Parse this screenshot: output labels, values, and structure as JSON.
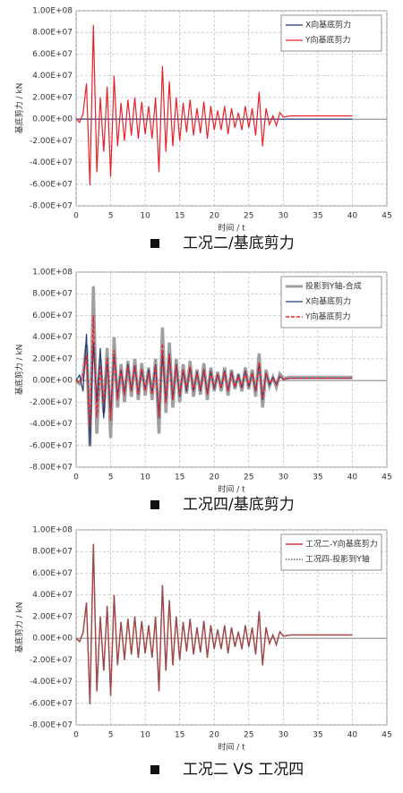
{
  "chart_data": [
    {
      "type": "line",
      "title": "工况二/基底剪力",
      "xlabel": "时间 / t",
      "ylabel": "基底剪力 / kN",
      "xlim": [
        0,
        45
      ],
      "xticks": [
        0,
        5,
        10,
        15,
        20,
        25,
        30,
        35,
        40,
        45
      ],
      "ylim": [
        -80000000.0,
        100000000.0
      ],
      "yticks": [
        {
          "value": -80000000.0,
          "label": "-8.00E+07"
        },
        {
          "value": -60000000.0,
          "label": "-6.00E+07"
        },
        {
          "value": -40000000.0,
          "label": "-4.00E+07"
        },
        {
          "value": -20000000.0,
          "label": "-2.00E+07"
        },
        {
          "value": 0,
          "label": "0.00E+00"
        },
        {
          "value": 20000000.0,
          "label": "2.00E+07"
        },
        {
          "value": 40000000.0,
          "label": "4.00E+07"
        },
        {
          "value": 60000000.0,
          "label": "6.00E+07"
        },
        {
          "value": 80000000.0,
          "label": "8.00E+07"
        },
        {
          "value": 100000000.0,
          "label": "1.00E+08"
        }
      ],
      "grid": true,
      "legend": "upper right",
      "x": [
        0,
        0.5,
        1,
        1.5,
        2,
        2.5,
        3,
        3.5,
        4,
        4.5,
        5,
        5.5,
        6,
        6.5,
        7,
        7.5,
        8,
        8.5,
        9,
        9.5,
        10,
        10.5,
        11,
        11.5,
        12,
        12.5,
        13,
        13.5,
        14,
        14.5,
        15,
        15.5,
        16,
        16.5,
        17,
        17.5,
        18,
        18.5,
        19,
        19.5,
        20,
        20.5,
        21,
        21.5,
        22,
        22.5,
        23,
        23.5,
        24,
        24.5,
        25,
        25.5,
        26,
        26.5,
        27,
        27.5,
        28,
        28.5,
        29,
        29.5,
        30,
        31,
        40
      ],
      "series": [
        {
          "name": "X向基底剪力",
          "color": "#1f3a7a",
          "style": "solid",
          "width": 1.2,
          "values": [
            0,
            0,
            0,
            0,
            0,
            0,
            0,
            0,
            0,
            0,
            0,
            0,
            0,
            0,
            0,
            0,
            0,
            0,
            0,
            0,
            0,
            0,
            0,
            0,
            0,
            0,
            0,
            0,
            0,
            0,
            0,
            0,
            0,
            0,
            0,
            0,
            0,
            0,
            0,
            0,
            0,
            0,
            0,
            0,
            0,
            0,
            0,
            0,
            0,
            0,
            0,
            0,
            0,
            0,
            0,
            0,
            0,
            0,
            0,
            0,
            0,
            0,
            0
          ]
        },
        {
          "name": "Y向基底剪力",
          "color": "#e8202a",
          "style": "solid",
          "width": 1.2,
          "values": [
            0,
            -3000000.0,
            5000000.0,
            33000000.0,
            -61000000.0,
            87000000.0,
            -49000000.0,
            20000000.0,
            -30000000.0,
            30000000.0,
            -53000000.0,
            40000000.0,
            -25000000.0,
            15000000.0,
            -20000000.0,
            18000000.0,
            -15000000.0,
            20000000.0,
            -18000000.0,
            16000000.0,
            -14000000.0,
            12000000.0,
            -18000000.0,
            20000000.0,
            -49000000.0,
            49000000.0,
            -30000000.0,
            35000000.0,
            -25000000.0,
            20000000.0,
            -20000000.0,
            15000000.0,
            -12000000.0,
            18000000.0,
            -15000000.0,
            10000000.0,
            -13000000.0,
            16000000.0,
            -18000000.0,
            12000000.0,
            -10000000.0,
            8000000.0,
            -10000000.0,
            12000000.0,
            -14000000.0,
            10000000.0,
            -8000000.0,
            6000000.0,
            -10000000.0,
            12000000.0,
            -8000000.0,
            10000000.0,
            -15000000.0,
            25000000.0,
            -25000000.0,
            10000000.0,
            -5000000.0,
            3000000.0,
            -6000000.0,
            6000000.0,
            2000000.0,
            3000000.0,
            3000000.0
          ]
        }
      ]
    },
    {
      "type": "line",
      "title": "工况四/基底剪力",
      "xlabel": "时间 / t",
      "ylabel": "基底剪力 / kN",
      "xlim": [
        0,
        45
      ],
      "xticks": [
        0,
        5,
        10,
        15,
        20,
        25,
        30,
        35,
        40,
        45
      ],
      "ylim": [
        -80000000.0,
        100000000.0
      ],
      "yticks": [
        {
          "value": -80000000.0,
          "label": "-8.00E+07"
        },
        {
          "value": -60000000.0,
          "label": "-6.00E+07"
        },
        {
          "value": -40000000.0,
          "label": "-4.00E+07"
        },
        {
          "value": -20000000.0,
          "label": "-2.00E+07"
        },
        {
          "value": 0,
          "label": "0.00E+00"
        },
        {
          "value": 20000000.0,
          "label": "2.00E+07"
        },
        {
          "value": 40000000.0,
          "label": "4.00E+07"
        },
        {
          "value": 60000000.0,
          "label": "6.00E+07"
        },
        {
          "value": 80000000.0,
          "label": "8.00E+07"
        },
        {
          "value": 100000000.0,
          "label": "1.00E+08"
        }
      ],
      "grid": true,
      "legend": "upper right",
      "x": [
        0,
        0.5,
        1,
        1.5,
        2,
        2.5,
        3,
        3.5,
        4,
        4.5,
        5,
        5.5,
        6,
        6.5,
        7,
        7.5,
        8,
        8.5,
        9,
        9.5,
        10,
        10.5,
        11,
        11.5,
        12,
        12.5,
        13,
        13.5,
        14,
        14.5,
        15,
        15.5,
        16,
        16.5,
        17,
        17.5,
        18,
        18.5,
        19,
        19.5,
        20,
        20.5,
        21,
        21.5,
        22,
        22.5,
        23,
        23.5,
        24,
        24.5,
        25,
        25.5,
        26,
        26.5,
        27,
        27.5,
        28,
        28.5,
        29,
        29.5,
        30,
        31,
        40
      ],
      "series": [
        {
          "name": "投影到Y轴-合成",
          "color": "#a0a0a0",
          "style": "solid",
          "width": 3.5,
          "values": [
            0,
            -3000000.0,
            5000000.0,
            33000000.0,
            -61000000.0,
            87000000.0,
            -49000000.0,
            20000000.0,
            -30000000.0,
            30000000.0,
            -53000000.0,
            40000000.0,
            -25000000.0,
            15000000.0,
            -20000000.0,
            18000000.0,
            -15000000.0,
            20000000.0,
            -18000000.0,
            16000000.0,
            -14000000.0,
            12000000.0,
            -18000000.0,
            20000000.0,
            -49000000.0,
            49000000.0,
            -30000000.0,
            35000000.0,
            -25000000.0,
            20000000.0,
            -20000000.0,
            15000000.0,
            -12000000.0,
            18000000.0,
            -15000000.0,
            10000000.0,
            -13000000.0,
            16000000.0,
            -18000000.0,
            12000000.0,
            -10000000.0,
            8000000.0,
            -10000000.0,
            12000000.0,
            -14000000.0,
            10000000.0,
            -8000000.0,
            6000000.0,
            -10000000.0,
            12000000.0,
            -8000000.0,
            10000000.0,
            -15000000.0,
            25000000.0,
            -25000000.0,
            10000000.0,
            -5000000.0,
            3000000.0,
            -6000000.0,
            6000000.0,
            2000000.0,
            3000000.0,
            3000000.0
          ]
        },
        {
          "name": "X向基底剪力",
          "color": "#1f3a7a",
          "style": "solid",
          "width": 1.2,
          "values": [
            0,
            5000000.0,
            -10000000.0,
            43000000.0,
            -60000000.0,
            35000000.0,
            -20000000.0,
            30000000.0,
            -35000000.0,
            20000000.0,
            -30000000.0,
            25000000.0,
            -15000000.0,
            10000000.0,
            -12000000.0,
            15000000.0,
            -10000000.0,
            14000000.0,
            -13000000.0,
            10000000.0,
            -9000000.0,
            10000000.0,
            -12000000.0,
            15000000.0,
            -35000000.0,
            25000000.0,
            -20000000.0,
            25000000.0,
            -18000000.0,
            15000000.0,
            -15000000.0,
            10000000.0,
            -10000000.0,
            12000000.0,
            -10000000.0,
            8000000.0,
            -10000000.0,
            10000000.0,
            -12000000.0,
            9000000.0,
            -8000000.0,
            6000000.0,
            -7000000.0,
            9000000.0,
            -10000000.0,
            8000000.0,
            -6000000.0,
            5000000.0,
            -7000000.0,
            9000000.0,
            -6000000.0,
            7000000.0,
            -10000000.0,
            15000000.0,
            -18000000.0,
            7000000.0,
            -4000000.0,
            3000000.0,
            -4000000.0,
            4000000.0,
            1000000.0,
            2000000.0,
            2000000.0
          ]
        },
        {
          "name": "Y向基底剪力",
          "color": "#e8202a",
          "style": "dashed",
          "width": 1.4,
          "values": [
            0,
            -2000000.0,
            4000000.0,
            23000000.0,
            -43000000.0,
            60000000.0,
            -34000000.0,
            14000000.0,
            -21000000.0,
            21000000.0,
            -37000000.0,
            28000000.0,
            -18000000.0,
            10000000.0,
            -14000000.0,
            13000000.0,
            -10000000.0,
            14000000.0,
            -13000000.0,
            11000000.0,
            -10000000.0,
            8000000.0,
            -13000000.0,
            14000000.0,
            -34000000.0,
            34000000.0,
            -21000000.0,
            24000000.0,
            -18000000.0,
            14000000.0,
            -14000000.0,
            10000000.0,
            -8000000.0,
            13000000.0,
            -10000000.0,
            7000000.0,
            -9000000.0,
            11000000.0,
            -13000000.0,
            8000000.0,
            -7000000.0,
            6000000.0,
            -7000000.0,
            8000000.0,
            -10000000.0,
            7000000.0,
            -6000000.0,
            4000000.0,
            -7000000.0,
            8000000.0,
            -6000000.0,
            7000000.0,
            -10000000.0,
            17000000.0,
            -17000000.0,
            7000000.0,
            -3000000.0,
            2000000.0,
            -4000000.0,
            4000000.0,
            1000000.0,
            2000000.0,
            2000000.0
          ]
        }
      ]
    },
    {
      "type": "line",
      "title": "工况二 VS 工况四",
      "xlabel": "时间 / t",
      "ylabel": "基底剪力 / kN",
      "xlim": [
        0,
        45
      ],
      "xticks": [
        0,
        5,
        10,
        15,
        20,
        25,
        30,
        35,
        40,
        45
      ],
      "ylim": [
        -80000000.0,
        100000000.0
      ],
      "yticks": [
        {
          "value": -80000000.0,
          "label": "-8.00E+07"
        },
        {
          "value": -60000000.0,
          "label": "-6.00E+07"
        },
        {
          "value": -40000000.0,
          "label": "-4.00E+07"
        },
        {
          "value": -20000000.0,
          "label": "-2.00E+07"
        },
        {
          "value": 0,
          "label": "0.00E+00"
        },
        {
          "value": 20000000.0,
          "label": "2.00E+07"
        },
        {
          "value": 40000000.0,
          "label": "4.00E+07"
        },
        {
          "value": 60000000.0,
          "label": "6.00E+07"
        },
        {
          "value": 80000000.0,
          "label": "8.00E+07"
        },
        {
          "value": 100000000.0,
          "label": "1.00E+08"
        }
      ],
      "grid": true,
      "legend": "upper right",
      "x": [
        0,
        0.5,
        1,
        1.5,
        2,
        2.5,
        3,
        3.5,
        4,
        4.5,
        5,
        5.5,
        6,
        6.5,
        7,
        7.5,
        8,
        8.5,
        9,
        9.5,
        10,
        10.5,
        11,
        11.5,
        12,
        12.5,
        13,
        13.5,
        14,
        14.5,
        15,
        15.5,
        16,
        16.5,
        17,
        17.5,
        18,
        18.5,
        19,
        19.5,
        20,
        20.5,
        21,
        21.5,
        22,
        22.5,
        23,
        23.5,
        24,
        24.5,
        25,
        25.5,
        26,
        26.5,
        27,
        27.5,
        28,
        28.5,
        29,
        29.5,
        30,
        31,
        40
      ],
      "series": [
        {
          "name": "工况二-Y向基底剪力",
          "color": "#d03030",
          "style": "solid",
          "width": 1.4,
          "values": [
            0,
            -3000000.0,
            5000000.0,
            33000000.0,
            -61000000.0,
            87000000.0,
            -49000000.0,
            20000000.0,
            -30000000.0,
            30000000.0,
            -53000000.0,
            40000000.0,
            -25000000.0,
            15000000.0,
            -20000000.0,
            18000000.0,
            -15000000.0,
            20000000.0,
            -18000000.0,
            16000000.0,
            -14000000.0,
            12000000.0,
            -18000000.0,
            20000000.0,
            -49000000.0,
            49000000.0,
            -30000000.0,
            35000000.0,
            -25000000.0,
            20000000.0,
            -20000000.0,
            15000000.0,
            -12000000.0,
            18000000.0,
            -15000000.0,
            10000000.0,
            -13000000.0,
            16000000.0,
            -18000000.0,
            12000000.0,
            -10000000.0,
            8000000.0,
            -10000000.0,
            12000000.0,
            -14000000.0,
            10000000.0,
            -8000000.0,
            6000000.0,
            -10000000.0,
            12000000.0,
            -8000000.0,
            10000000.0,
            -15000000.0,
            25000000.0,
            -25000000.0,
            10000000.0,
            -5000000.0,
            3000000.0,
            -6000000.0,
            6000000.0,
            2000000.0,
            3000000.0,
            3000000.0
          ]
        },
        {
          "name": "工况四-投影到Y轴",
          "color": "#6e6060",
          "style": "dotted",
          "width": 1.4,
          "values": [
            0,
            -3000000.0,
            5000000.0,
            33000000.0,
            -61000000.0,
            87000000.0,
            -49000000.0,
            20000000.0,
            -30000000.0,
            30000000.0,
            -53000000.0,
            40000000.0,
            -25000000.0,
            15000000.0,
            -20000000.0,
            18000000.0,
            -15000000.0,
            20000000.0,
            -18000000.0,
            16000000.0,
            -14000000.0,
            12000000.0,
            -18000000.0,
            20000000.0,
            -49000000.0,
            49000000.0,
            -30000000.0,
            35000000.0,
            -25000000.0,
            20000000.0,
            -20000000.0,
            15000000.0,
            -12000000.0,
            18000000.0,
            -15000000.0,
            10000000.0,
            -13000000.0,
            16000000.0,
            -18000000.0,
            12000000.0,
            -10000000.0,
            8000000.0,
            -10000000.0,
            12000000.0,
            -14000000.0,
            10000000.0,
            -8000000.0,
            6000000.0,
            -10000000.0,
            12000000.0,
            -8000000.0,
            10000000.0,
            -15000000.0,
            25000000.0,
            -25000000.0,
            10000000.0,
            -5000000.0,
            3000000.0,
            -6000000.0,
            6000000.0,
            2000000.0,
            3000000.0,
            3000000.0
          ]
        }
      ]
    }
  ]
}
